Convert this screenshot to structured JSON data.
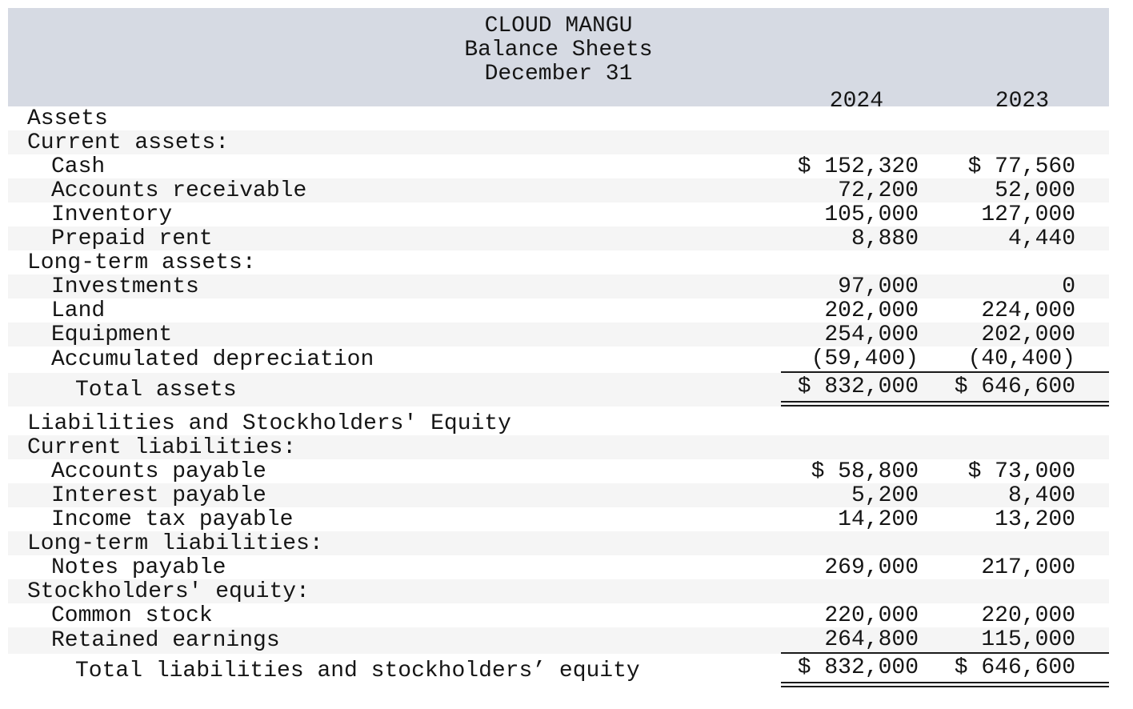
{
  "header": {
    "company": "CLOUD MANGU",
    "report": "Balance Sheets",
    "date_line": "December 31",
    "columns": [
      "2024",
      "2023"
    ]
  },
  "colors": {
    "header_bg": "#d6dae3",
    "stripe_bg": "#f5f5f5",
    "text": "#151515",
    "rule": "#1a1a1a"
  },
  "table": {
    "rows": [
      {
        "label": "Assets",
        "indent": 0,
        "shaded": false,
        "values": [
          "",
          ""
        ],
        "rule": "none",
        "total": false
      },
      {
        "label": "Current assets:",
        "indent": 0,
        "shaded": true,
        "values": [
          "",
          ""
        ],
        "rule": "none",
        "total": false
      },
      {
        "label": "Cash",
        "indent": 1,
        "shaded": false,
        "values": [
          "$ 152,320",
          "$ 77,560"
        ],
        "rule": "none",
        "total": false
      },
      {
        "label": "Accounts receivable",
        "indent": 1,
        "shaded": true,
        "values": [
          "72,200",
          "52,000"
        ],
        "rule": "none",
        "total": false
      },
      {
        "label": "Inventory",
        "indent": 1,
        "shaded": false,
        "values": [
          "105,000",
          "127,000"
        ],
        "rule": "none",
        "total": false
      },
      {
        "label": "Prepaid rent",
        "indent": 1,
        "shaded": true,
        "values": [
          "8,880",
          "4,440"
        ],
        "rule": "none",
        "total": false
      },
      {
        "label": "Long-term assets:",
        "indent": 0,
        "shaded": false,
        "values": [
          "",
          ""
        ],
        "rule": "none",
        "total": false
      },
      {
        "label": "Investments",
        "indent": 1,
        "shaded": true,
        "values": [
          "97,000",
          "0"
        ],
        "rule": "none",
        "total": false
      },
      {
        "label": "Land",
        "indent": 1,
        "shaded": false,
        "values": [
          "202,000",
          "224,000"
        ],
        "rule": "none",
        "total": false
      },
      {
        "label": "Equipment",
        "indent": 1,
        "shaded": true,
        "values": [
          "254,000",
          "202,000"
        ],
        "rule": "none",
        "total": false
      },
      {
        "label": "Accumulated depreciation",
        "indent": 1,
        "shaded": false,
        "values": [
          "(59,400)",
          "(40,400)"
        ],
        "rule": "single",
        "total": false
      },
      {
        "label": "Total assets",
        "indent": 2,
        "shaded": true,
        "values": [
          "$ 832,000",
          "$ 646,600"
        ],
        "rule": "double",
        "total": true
      },
      {
        "label": "Liabilities and Stockholders' Equity",
        "indent": 0,
        "shaded": false,
        "values": [
          "",
          ""
        ],
        "rule": "none",
        "total": false,
        "gap_above": true
      },
      {
        "label": "Current liabilities:",
        "indent": 0,
        "shaded": true,
        "values": [
          "",
          ""
        ],
        "rule": "none",
        "total": false
      },
      {
        "label": "Accounts payable",
        "indent": 1,
        "shaded": false,
        "values": [
          "$ 58,800",
          "$ 73,000"
        ],
        "rule": "none",
        "total": false
      },
      {
        "label": "Interest payable",
        "indent": 1,
        "shaded": true,
        "values": [
          "5,200",
          "8,400"
        ],
        "rule": "none",
        "total": false
      },
      {
        "label": "Income tax payable",
        "indent": 1,
        "shaded": false,
        "values": [
          "14,200",
          "13,200"
        ],
        "rule": "none",
        "total": false
      },
      {
        "label": "Long-term liabilities:",
        "indent": 0,
        "shaded": true,
        "values": [
          "",
          ""
        ],
        "rule": "none",
        "total": false
      },
      {
        "label": "Notes payable",
        "indent": 1,
        "shaded": false,
        "values": [
          "269,000",
          "217,000"
        ],
        "rule": "none",
        "total": false
      },
      {
        "label": "Stockholders' equity:",
        "indent": 0,
        "shaded": true,
        "values": [
          "",
          ""
        ],
        "rule": "none",
        "total": false
      },
      {
        "label": "Common stock",
        "indent": 1,
        "shaded": false,
        "values": [
          "220,000",
          "220,000"
        ],
        "rule": "none",
        "total": false
      },
      {
        "label": "Retained earnings",
        "indent": 1,
        "shaded": true,
        "values": [
          "264,800",
          "115,000"
        ],
        "rule": "single",
        "total": false
      },
      {
        "label": "Total liabilities and stockholders’ equity",
        "indent": 2,
        "shaded": false,
        "values": [
          "$ 832,000",
          "$ 646,600"
        ],
        "rule": "double",
        "total": true
      }
    ]
  }
}
